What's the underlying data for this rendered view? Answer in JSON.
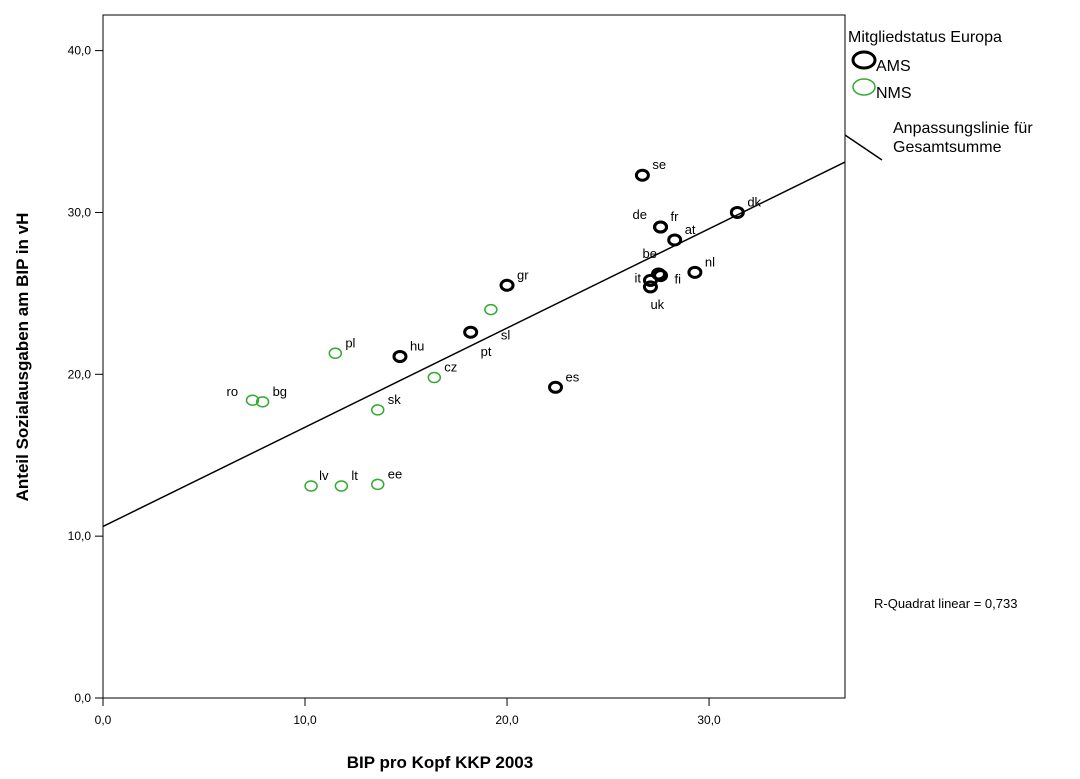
{
  "chart_data": {
    "type": "scatter",
    "x_label": "BIP pro Kopf KKP 2003",
    "y_label": "Anteil Sozialausgaben am BIP in vH",
    "legend_title": "Mitgliedstatus Europa",
    "legend": "right",
    "series": [
      {
        "name": "AMS",
        "color": "#000000",
        "labels": [
          "se",
          "de",
          "fr",
          "at",
          "dk",
          "nl",
          "be",
          "fi",
          "it",
          "uk",
          "gr",
          "pt",
          "hu",
          "es"
        ],
        "x": [
          26.7,
          27.6,
          27.6,
          28.3,
          31.4,
          29.3,
          27.5,
          27.6,
          27.1,
          27.1,
          20.0,
          18.2,
          14.7,
          22.4
        ],
        "values": [
          32.3,
          29.1,
          29.1,
          28.3,
          30.0,
          26.3,
          26.2,
          26.1,
          25.8,
          25.4,
          25.5,
          22.6,
          21.1,
          19.2
        ]
      },
      {
        "name": "NMS",
        "color": "#33aa33",
        "labels": [
          "sl",
          "pl",
          "cz",
          "ro",
          "bg",
          "sk",
          "lv",
          "lt",
          "ee"
        ],
        "x": [
          19.2,
          11.5,
          16.4,
          7.4,
          7.9,
          13.6,
          10.3,
          11.8,
          13.6
        ],
        "values": [
          24.0,
          21.3,
          19.8,
          18.4,
          18.3,
          17.8,
          13.1,
          13.1,
          13.2
        ]
      }
    ],
    "fit_line": {
      "label": [
        "Anpassungslinie für",
        "Gesamtsumme"
      ],
      "intercept": 10.6,
      "slope": 0.613,
      "color": "#000000"
    },
    "annotation": "R-Quadrat linear = 0,733",
    "xlim": [
      0,
      36.73
    ],
    "ylim": [
      0,
      42.2
    ],
    "xticks": [
      {
        "value": 0,
        "label": "0,0"
      },
      {
        "value": 10,
        "label": "10,0"
      },
      {
        "value": 20,
        "label": "20,0"
      },
      {
        "value": 30,
        "label": "30,0"
      }
    ],
    "yticks": [
      {
        "value": 0,
        "label": "0,0"
      },
      {
        "value": 10,
        "label": "10,0"
      },
      {
        "value": 20,
        "label": "20,0"
      },
      {
        "value": 30,
        "label": "30,0"
      },
      {
        "value": 40,
        "label": "40,0"
      }
    ]
  }
}
